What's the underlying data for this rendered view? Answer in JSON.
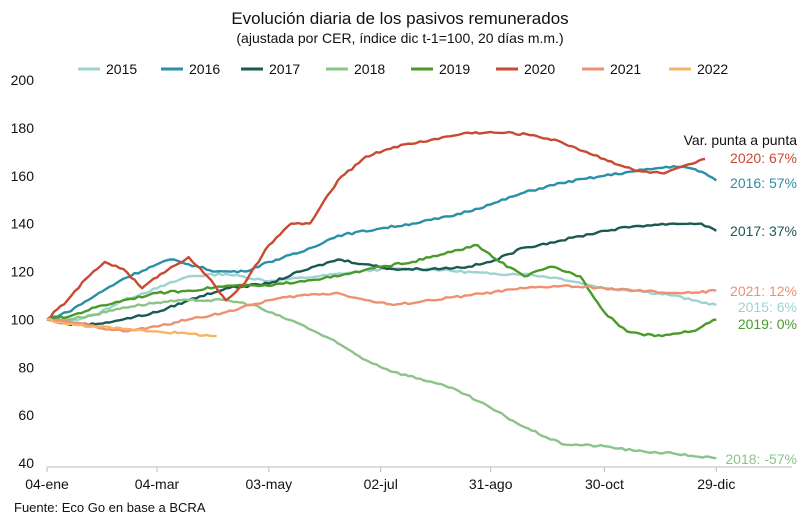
{
  "chart_data": {
    "type": "line",
    "title": "Evolución diaria de los pasivos remunerados",
    "subtitle": "(ajustada por CER, índice dic t-1=100, 20 días m.m.)",
    "xlabel": "",
    "ylabel": "",
    "ylim": [
      40,
      200
    ],
    "yticks": [
      40,
      60,
      80,
      100,
      120,
      140,
      160,
      180,
      200
    ],
    "xlim": [
      4,
      365
    ],
    "xticks": [
      {
        "day": 4,
        "label": "04-ene"
      },
      {
        "day": 63,
        "label": "04-mar"
      },
      {
        "day": 123,
        "label": "03-may"
      },
      {
        "day": 183,
        "label": "02-jul"
      },
      {
        "day": 242,
        "label": "31-ago"
      },
      {
        "day": 303,
        "label": "30-oct"
      },
      {
        "day": 363,
        "label": "29-dic"
      }
    ],
    "grid": false,
    "legend_position": "top",
    "annotation_header": "Var. punta a punta",
    "source": "Fuente: Eco Go en base a BCRA",
    "series": [
      {
        "name": "2015",
        "color": "#9ed3d0",
        "end_label": "2015: 6%",
        "points": [
          [
            4,
            100
          ],
          [
            15,
            99
          ],
          [
            30,
            102
          ],
          [
            45,
            108
          ],
          [
            63,
            113
          ],
          [
            80,
            118
          ],
          [
            100,
            119
          ],
          [
            123,
            116
          ],
          [
            150,
            118
          ],
          [
            183,
            121
          ],
          [
            210,
            121
          ],
          [
            242,
            119
          ],
          [
            260,
            119
          ],
          [
            280,
            117
          ],
          [
            303,
            113
          ],
          [
            320,
            112
          ],
          [
            340,
            110
          ],
          [
            350,
            108
          ],
          [
            363,
            106
          ]
        ]
      },
      {
        "name": "2016",
        "color": "#2b8fa6",
        "end_label": "2016: 57%",
        "points": [
          [
            4,
            100
          ],
          [
            15,
            103
          ],
          [
            30,
            110
          ],
          [
            45,
            117
          ],
          [
            63,
            123
          ],
          [
            70,
            125
          ],
          [
            80,
            123
          ],
          [
            95,
            120
          ],
          [
            110,
            120
          ],
          [
            123,
            124
          ],
          [
            140,
            128
          ],
          [
            160,
            135
          ],
          [
            183,
            138
          ],
          [
            200,
            140
          ],
          [
            220,
            143
          ],
          [
            242,
            148
          ],
          [
            260,
            153
          ],
          [
            280,
            157
          ],
          [
            303,
            160
          ],
          [
            320,
            162
          ],
          [
            340,
            164
          ],
          [
            350,
            163
          ],
          [
            357,
            161
          ],
          [
            363,
            158
          ]
        ]
      },
      {
        "name": "2017",
        "color": "#1a5a52",
        "end_label": "2017: 37%",
        "points": [
          [
            4,
            100
          ],
          [
            15,
            98
          ],
          [
            30,
            98
          ],
          [
            45,
            100
          ],
          [
            63,
            103
          ],
          [
            80,
            108
          ],
          [
            100,
            113
          ],
          [
            123,
            115
          ],
          [
            140,
            120
          ],
          [
            160,
            125
          ],
          [
            175,
            123
          ],
          [
            190,
            121
          ],
          [
            210,
            121
          ],
          [
            230,
            122
          ],
          [
            242,
            124
          ],
          [
            260,
            130
          ],
          [
            280,
            133
          ],
          [
            303,
            137
          ],
          [
            320,
            139
          ],
          [
            340,
            140
          ],
          [
            355,
            140
          ],
          [
            363,
            137
          ]
        ]
      },
      {
        "name": "2018",
        "color": "#8ac48a",
        "end_label": "2018: -57%",
        "points": [
          [
            4,
            100
          ],
          [
            15,
            100
          ],
          [
            30,
            102
          ],
          [
            45,
            105
          ],
          [
            63,
            107
          ],
          [
            80,
            108
          ],
          [
            100,
            108
          ],
          [
            115,
            106
          ],
          [
            123,
            103
          ],
          [
            140,
            98
          ],
          [
            160,
            90
          ],
          [
            175,
            83
          ],
          [
            190,
            78
          ],
          [
            210,
            74
          ],
          [
            225,
            70
          ],
          [
            242,
            63
          ],
          [
            260,
            55
          ],
          [
            280,
            48
          ],
          [
            303,
            47
          ],
          [
            320,
            45
          ],
          [
            340,
            44
          ],
          [
            350,
            43
          ],
          [
            363,
            42
          ]
        ]
      },
      {
        "name": "2019",
        "color": "#4a9a2a",
        "end_label": "2019: 0%",
        "points": [
          [
            4,
            100
          ],
          [
            15,
            101
          ],
          [
            30,
            105
          ],
          [
            45,
            108
          ],
          [
            63,
            111
          ],
          [
            80,
            112
          ],
          [
            100,
            114
          ],
          [
            123,
            114
          ],
          [
            140,
            116
          ],
          [
            160,
            118
          ],
          [
            183,
            122
          ],
          [
            200,
            124
          ],
          [
            215,
            127
          ],
          [
            225,
            129
          ],
          [
            235,
            131
          ],
          [
            245,
            125
          ],
          [
            260,
            118
          ],
          [
            275,
            122
          ],
          [
            290,
            118
          ],
          [
            303,
            103
          ],
          [
            315,
            95
          ],
          [
            330,
            93
          ],
          [
            340,
            94
          ],
          [
            350,
            95
          ],
          [
            363,
            100
          ]
        ]
      },
      {
        "name": "2020",
        "color": "#c84a33",
        "end_label": "2020: 67%",
        "points": [
          [
            4,
            100
          ],
          [
            15,
            108
          ],
          [
            25,
            117
          ],
          [
            35,
            124
          ],
          [
            45,
            121
          ],
          [
            55,
            113
          ],
          [
            65,
            119
          ],
          [
            80,
            126
          ],
          [
            90,
            118
          ],
          [
            100,
            108
          ],
          [
            110,
            115
          ],
          [
            123,
            131
          ],
          [
            135,
            140
          ],
          [
            145,
            140
          ],
          [
            160,
            158
          ],
          [
            175,
            168
          ],
          [
            190,
            172
          ],
          [
            210,
            175
          ],
          [
            230,
            178
          ],
          [
            250,
            178
          ],
          [
            265,
            177
          ],
          [
            280,
            174
          ],
          [
            303,
            167
          ],
          [
            320,
            162
          ],
          [
            335,
            161
          ],
          [
            350,
            165
          ],
          [
            357,
            167
          ]
        ]
      },
      {
        "name": "2021",
        "color": "#ef9170",
        "end_label": "2021: 12%",
        "points": [
          [
            4,
            100
          ],
          [
            15,
            99
          ],
          [
            30,
            97
          ],
          [
            45,
            95
          ],
          [
            63,
            97
          ],
          [
            80,
            100
          ],
          [
            100,
            103
          ],
          [
            123,
            108
          ],
          [
            140,
            110
          ],
          [
            160,
            111
          ],
          [
            175,
            108
          ],
          [
            190,
            106
          ],
          [
            210,
            108
          ],
          [
            230,
            110
          ],
          [
            260,
            113
          ],
          [
            280,
            114
          ],
          [
            303,
            113
          ],
          [
            320,
            112
          ],
          [
            340,
            111
          ],
          [
            350,
            111
          ],
          [
            363,
            112
          ]
        ]
      },
      {
        "name": "2022",
        "color": "#f5b567",
        "end_label": "",
        "points": [
          [
            4,
            100
          ],
          [
            15,
            98
          ],
          [
            30,
            97
          ],
          [
            45,
            96
          ],
          [
            63,
            95
          ],
          [
            80,
            94
          ],
          [
            95,
            93
          ]
        ]
      }
    ]
  }
}
